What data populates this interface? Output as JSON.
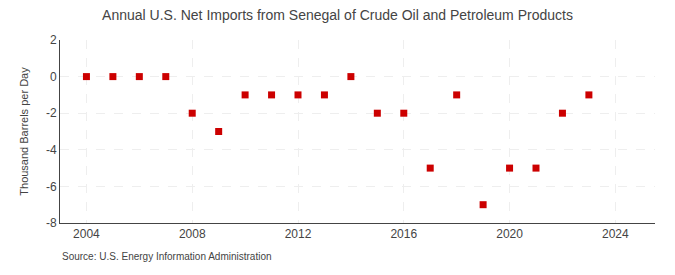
{
  "chart_data": {
    "type": "scatter",
    "title": "Annual U.S. Net Imports from Senegal of Crude Oil and Petroleum Products",
    "ylabel": "Thousand Barrels per Day",
    "annotations": [
      "Source: U.S. Energy Information Administration"
    ],
    "x": [
      2004,
      2005,
      2006,
      2007,
      2008,
      2009,
      2010,
      2011,
      2012,
      2013,
      2014,
      2015,
      2016,
      2017,
      2018,
      2019,
      2020,
      2021,
      2022,
      2023
    ],
    "values": [
      0,
      0,
      0,
      0,
      -2,
      -3,
      -1,
      -1,
      -1,
      -1,
      0,
      -2,
      -2,
      -5,
      -1,
      -7,
      -5,
      -5,
      -2,
      -1
    ],
    "color": "#cc0000",
    "marker": "square",
    "ylim": [
      -8,
      2
    ],
    "yticks": [
      -8,
      -6,
      -4,
      -2,
      0,
      2
    ],
    "xlim": [
      2003,
      2025.5
    ],
    "xticks": [
      2004,
      2008,
      2012,
      2016,
      2020,
      2024
    ],
    "grid": true
  }
}
